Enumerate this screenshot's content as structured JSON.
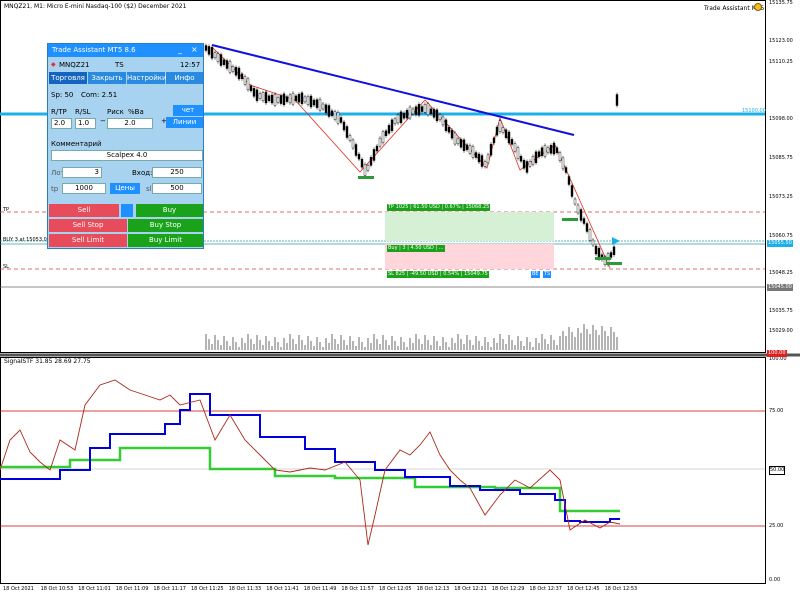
{
  "window": {
    "title": "MNQZ21, M1:  Micro E-mini Nasdaq-100 ($2) December 2021",
    "ea_name": "Trade Assistant MT5",
    "ea_icon": "smiley-icon"
  },
  "price_axis": {
    "labels": [
      "15135.75",
      "15123.00",
      "15110.25",
      "15098.00",
      "15085.75",
      "15073.25",
      "15060.75",
      "15048.25",
      "15035.75",
      "15029.00"
    ],
    "current_price": "15055.50",
    "sl_price": "15045.00",
    "level_15100": "15100.00"
  },
  "time_axis": {
    "labels": [
      "18 Oct 2021",
      "18 Oct 10:53",
      "18 Oct 11:01",
      "18 Oct 11:09",
      "18 Oct 11:17",
      "18 Oct 11:25",
      "18 Oct 11:33",
      "18 Oct 11:41",
      "18 Oct 11:49",
      "18 Oct 11:57",
      "18 Oct 12:05",
      "18 Oct 12:13",
      "18 Oct 12:21",
      "18 Oct 12:29",
      "18 Oct 12:37",
      "18 Oct 12:45",
      "18 Oct 12:53"
    ]
  },
  "chart_lines": {
    "tp_tag": "TP",
    "sl_tag": "SL",
    "buy_tag": "BUY 3 at 15053.0"
  },
  "trade_boxes": {
    "tp": "TP 1025  |  61.50 USD  |  0.67%  |  15068.25",
    "buy": "Buy  |  3  |  4.50 USD  |  ...",
    "sl": "SL 825  |  -49.50 USD  |  0.54%  |  15049.75",
    "be": "BE",
    "ts": "TS"
  },
  "indicator": {
    "name": "SignalSTF 31.85 28.69 27.75",
    "axis_labels": [
      "100.00",
      "75.00",
      "50.00",
      "25.00",
      "0.00"
    ],
    "top_value": "100.00"
  },
  "panel": {
    "title": "Trade Assistant MT5 8.6",
    "symbol": "MNQZ21",
    "ts": "TS",
    "time": "12:57",
    "tabs": [
      "Торговля",
      "Закрыть",
      "Настройки",
      "Инфо"
    ],
    "spread": "Sp: 50",
    "commission": "Com: 2.51",
    "labels": {
      "rr": "R/TP",
      "rsl": "R/SL",
      "risk": "Риск",
      "pct": "%Ba",
      "lot": "Лот",
      "entry": "Вход:",
      "tp": "tp",
      "sl": "sl",
      "comment": "Комментарий"
    },
    "values": {
      "rr": "2.0",
      "rsl": "1.0",
      "risk": "2.0",
      "account_btn": "чет лота",
      "line_btn": "Линии",
      "comment_val": "Scalpex 4.0",
      "lot": "3",
      "entry": "250",
      "tp": "1000",
      "prices_btn": "Цены",
      "sl": "500"
    },
    "buttons": {
      "sell": "Sell",
      "buy": "Buy",
      "sell_stop": "Sell Stop",
      "buy_stop": "Buy Stop",
      "sell_limit": "Sell Limit",
      "buy_limit": "Buy Limit"
    }
  }
}
